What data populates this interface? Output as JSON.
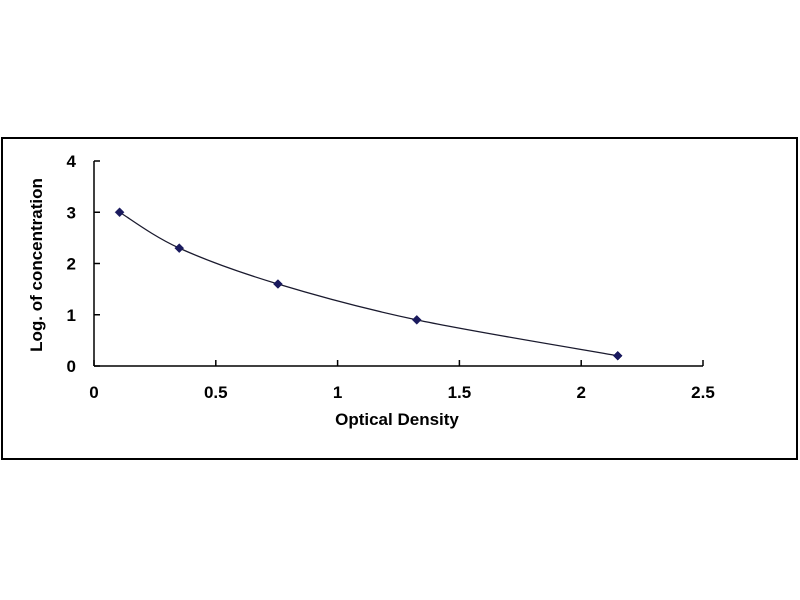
{
  "chart_data": {
    "type": "scatter",
    "title": "",
    "xlabel": "Optical Density",
    "ylabel": "Log. of concentration",
    "xlim": [
      0,
      2.5
    ],
    "ylim": [
      0,
      4
    ],
    "xticks": [
      "0",
      "0.5",
      "1",
      "1.5",
      "2",
      "2.5"
    ],
    "yticks": [
      "0",
      "1",
      "2",
      "3",
      "4"
    ],
    "grid": false,
    "legend": "none",
    "trendline": "smooth-curve",
    "series": [
      {
        "x": [
          0.105,
          0.35,
          0.755,
          1.325,
          2.15
        ],
        "y": [
          3.0,
          2.3,
          1.6,
          0.9,
          0.2
        ],
        "color": "#1a1a5e"
      }
    ]
  }
}
